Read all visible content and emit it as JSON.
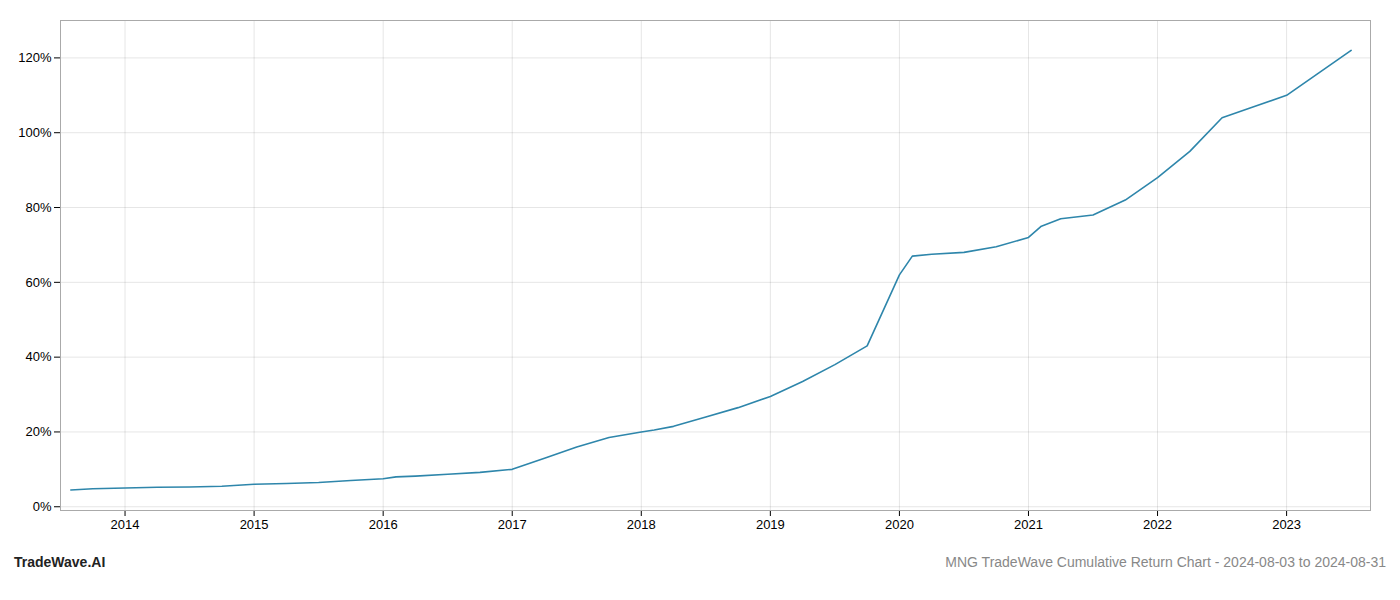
{
  "chart_data": {
    "type": "line",
    "title": "MNG TradeWave Cumulative Return Chart - 2024-08-03 to 2024-08-31",
    "annotations": [
      "TradeWave.AI"
    ],
    "color": "#2e86ab",
    "grid": true,
    "x": [
      2013.58,
      2013.75,
      2014.0,
      2014.25,
      2014.5,
      2014.75,
      2015.0,
      2015.25,
      2015.5,
      2015.75,
      2016.0,
      2016.1,
      2016.25,
      2016.5,
      2016.75,
      2017.0,
      2017.25,
      2017.5,
      2017.75,
      2018.0,
      2018.1,
      2018.25,
      2018.5,
      2018.75,
      2019.0,
      2019.25,
      2019.5,
      2019.6,
      2019.75,
      2020.0,
      2020.1,
      2020.25,
      2020.5,
      2020.75,
      2021.0,
      2021.1,
      2021.25,
      2021.5,
      2021.75,
      2022.0,
      2022.25,
      2022.5,
      2022.75,
      2023.0,
      2023.25,
      2023.5
    ],
    "values": [
      0.045,
      0.048,
      0.05,
      0.052,
      0.053,
      0.055,
      0.06,
      0.062,
      0.065,
      0.07,
      0.075,
      0.08,
      0.082,
      0.087,
      0.092,
      0.1,
      0.13,
      0.16,
      0.185,
      0.2,
      0.205,
      0.215,
      0.24,
      0.265,
      0.295,
      0.335,
      0.38,
      0.4,
      0.43,
      0.62,
      0.67,
      0.675,
      0.68,
      0.695,
      0.72,
      0.75,
      0.77,
      0.78,
      0.82,
      0.88,
      0.95,
      1.04,
      1.07,
      1.1,
      1.16,
      1.22
    ],
    "xlim": [
      2013.5,
      2023.65
    ],
    "xticks": [
      2014,
      2015,
      2016,
      2017,
      2018,
      2019,
      2020,
      2021,
      2022,
      2023
    ],
    "ylim": [
      -0.01,
      1.3
    ],
    "yticks": [
      {
        "value": 0.0,
        "label": "0%"
      },
      {
        "value": 0.2,
        "label": "20%"
      },
      {
        "value": 0.4,
        "label": "40%"
      },
      {
        "value": 0.6,
        "label": "60%"
      },
      {
        "value": 0.8,
        "label": "80%"
      },
      {
        "value": 1.0,
        "label": "100%"
      },
      {
        "value": 1.2,
        "label": "120%"
      }
    ]
  }
}
